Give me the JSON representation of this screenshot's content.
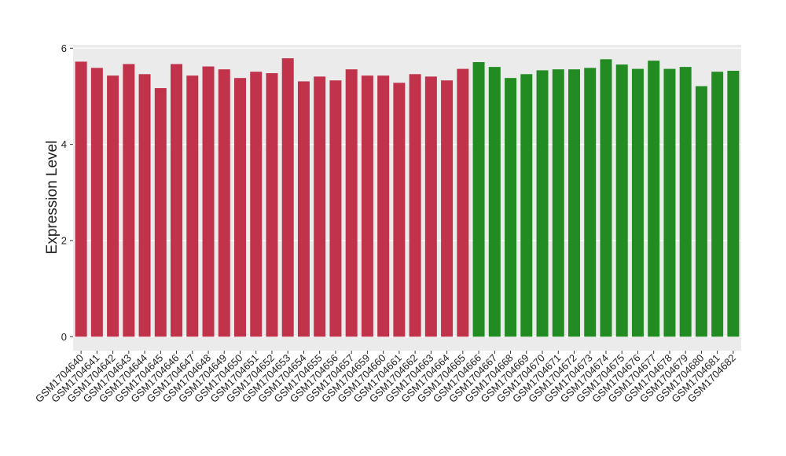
{
  "chart_data": {
    "type": "bar",
    "y_label": "Expression Level",
    "categories": [
      "GSM1704640",
      "GSM1704641",
      "GSM1704642",
      "GSM1704643",
      "GSM1704644",
      "GSM1704645",
      "GSM1704646",
      "GSM1704647",
      "GSM1704648",
      "GSM1704649",
      "GSM1704650",
      "GSM1704651",
      "GSM1704652",
      "GSM1704653",
      "GSM1704654",
      "GSM1704655",
      "GSM1704656",
      "GSM1704657",
      "GSM1704659",
      "GSM1704660",
      "GSM1704661",
      "GSM1704662",
      "GSM1704663",
      "GSM1704664",
      "GSM1704665",
      "GSM1704666",
      "GSM1704667",
      "GSM1704668",
      "GSM1704669",
      "GSM1704670",
      "GSM1704671",
      "GSM1704672",
      "GSM1704673",
      "GSM1704674",
      "GSM1704675",
      "GSM1704676",
      "GSM1704677",
      "GSM1704678",
      "GSM1704679",
      "GSM1704680",
      "GSM1704681",
      "GSM1704682"
    ],
    "values": [
      5.72,
      5.59,
      5.43,
      5.67,
      5.46,
      5.17,
      5.67,
      5.43,
      5.62,
      5.56,
      5.38,
      5.51,
      5.48,
      5.79,
      5.31,
      5.41,
      5.33,
      5.56,
      5.43,
      5.43,
      5.28,
      5.46,
      5.41,
      5.33,
      5.57,
      5.71,
      5.61,
      5.38,
      5.46,
      5.54,
      5.56,
      5.56,
      5.59,
      5.77,
      5.66,
      5.57,
      5.74,
      5.57,
      5.61,
      5.21,
      5.51,
      5.53
    ],
    "colors": [
      "#c0334b",
      "#c0334b",
      "#c0334b",
      "#c0334b",
      "#c0334b",
      "#c0334b",
      "#c0334b",
      "#c0334b",
      "#c0334b",
      "#c0334b",
      "#c0334b",
      "#c0334b",
      "#c0334b",
      "#c0334b",
      "#c0334b",
      "#c0334b",
      "#c0334b",
      "#c0334b",
      "#c0334b",
      "#c0334b",
      "#c0334b",
      "#c0334b",
      "#c0334b",
      "#c0334b",
      "#c0334b",
      "#228b22",
      "#228b22",
      "#228b22",
      "#228b22",
      "#228b22",
      "#228b22",
      "#228b22",
      "#228b22",
      "#228b22",
      "#228b22",
      "#228b22",
      "#228b22",
      "#228b22",
      "#228b22",
      "#228b22",
      "#228b22",
      "#228b22"
    ],
    "ylim": [
      -0.29,
      6.07
    ],
    "yticks": [
      0,
      2,
      4,
      6
    ],
    "grid": true
  }
}
